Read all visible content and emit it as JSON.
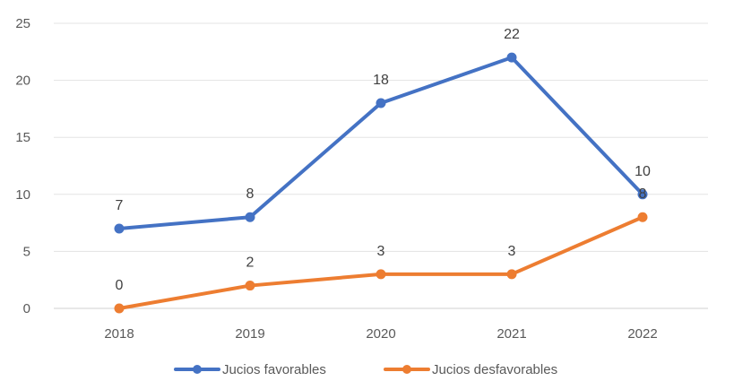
{
  "chart_data": {
    "type": "line",
    "title": "",
    "xlabel": "",
    "ylabel": "",
    "categories": [
      "2018",
      "2019",
      "2020",
      "2021",
      "2022"
    ],
    "ylim": [
      0,
      25
    ],
    "yticks": [
      0,
      5,
      10,
      15,
      20,
      25
    ],
    "grid": true,
    "legend_position": "bottom",
    "data_labels": true,
    "series": [
      {
        "name": "Jucios favorables",
        "color": "#4472C4",
        "values": [
          7,
          8,
          18,
          22,
          10
        ]
      },
      {
        "name": "Jucios desfavorables",
        "color": "#ED7D31",
        "values": [
          0,
          2,
          3,
          3,
          8
        ]
      }
    ]
  }
}
